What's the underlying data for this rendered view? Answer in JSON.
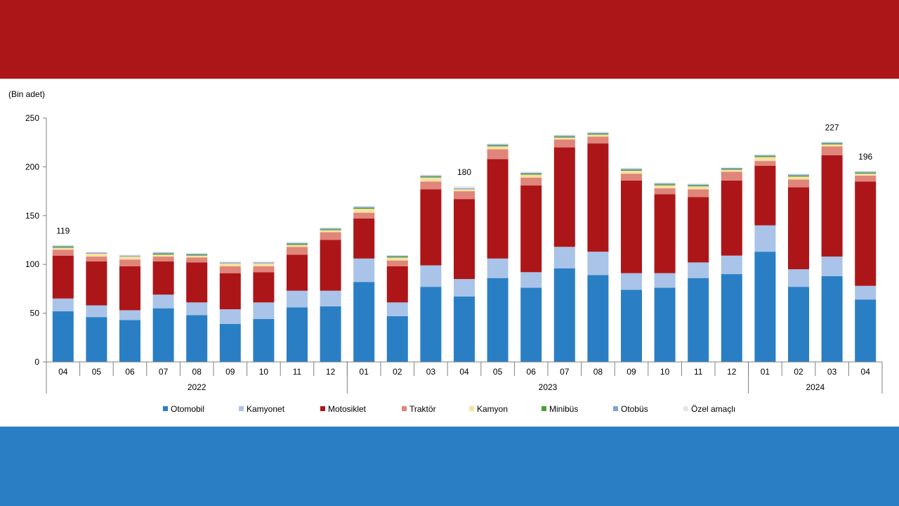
{
  "chart_data": {
    "type": "bar",
    "stacked": true,
    "unit_label": "(Bin adet)",
    "ylim": [
      0,
      250
    ],
    "yticks": [
      "0",
      "50",
      "100",
      "150",
      "200",
      "250"
    ],
    "categories": [
      "04",
      "05",
      "06",
      "07",
      "08",
      "09",
      "10",
      "11",
      "12",
      "01",
      "02",
      "03",
      "04",
      "05",
      "06",
      "07",
      "08",
      "09",
      "10",
      "11",
      "12",
      "01",
      "02",
      "03",
      "04"
    ],
    "year_groups": [
      {
        "label": "2022",
        "count": 9
      },
      {
        "label": "2023",
        "count": 12
      },
      {
        "label": "2024",
        "count": 4
      }
    ],
    "series": [
      {
        "name": "Otomobil",
        "color": "#2a7fc4",
        "values": [
          52,
          46,
          43,
          55,
          48,
          39,
          44,
          56,
          57,
          82,
          47,
          77,
          67,
          86,
          76,
          96,
          89,
          74,
          76,
          86,
          90,
          113,
          77,
          88,
          64
        ]
      },
      {
        "name": "Kamyonet",
        "color": "#a9c4e8",
        "values": [
          13,
          12,
          10,
          14,
          13,
          15,
          17,
          17,
          16,
          24,
          14,
          22,
          18,
          20,
          16,
          22,
          24,
          17,
          15,
          16,
          19,
          27,
          18,
          20,
          14
        ]
      },
      {
        "name": "Motosiklet",
        "color": "#ad1618",
        "values": [
          44,
          45,
          45,
          34,
          41,
          37,
          31,
          37,
          52,
          41,
          37,
          78,
          82,
          102,
          89,
          102,
          111,
          95,
          81,
          67,
          77,
          61,
          84,
          104,
          107
        ]
      },
      {
        "name": "Traktör",
        "color": "#e0857a",
        "values": [
          6,
          5,
          7,
          5,
          5,
          7,
          6,
          8,
          8,
          6,
          6,
          8,
          8,
          10,
          8,
          8,
          7,
          7,
          6,
          8,
          9,
          5,
          8,
          9,
          6
        ]
      },
      {
        "name": "Kamyon",
        "color": "#fbe0a0",
        "values": [
          2,
          3,
          3,
          2,
          2,
          3,
          3,
          2,
          2,
          4,
          3,
          4,
          2,
          3,
          3,
          2,
          2,
          3,
          3,
          3,
          2,
          4,
          3,
          2,
          2
        ]
      },
      {
        "name": "Minibüs",
        "color": "#4a9c3c",
        "values": [
          1,
          0,
          0,
          1,
          1,
          0,
          0,
          1,
          1,
          1,
          1,
          1,
          0,
          1,
          1,
          1,
          1,
          1,
          1,
          1,
          1,
          1,
          1,
          1,
          1
        ]
      },
      {
        "name": "Otobüs",
        "color": "#7ea3d6",
        "values": [
          1,
          1,
          1,
          1,
          1,
          1,
          1,
          1,
          1,
          1,
          1,
          1,
          1,
          1,
          1,
          1,
          1,
          1,
          1,
          1,
          1,
          1,
          1,
          1,
          1
        ]
      },
      {
        "name": "Özel amaçlı",
        "color": "#e6e6e0",
        "values": [
          1,
          1,
          1,
          1,
          0,
          1,
          1,
          1,
          1,
          1,
          0,
          1,
          2,
          1,
          1,
          1,
          1,
          1,
          1,
          1,
          0,
          1,
          1,
          1,
          1
        ]
      }
    ],
    "annotations": [
      {
        "index": 0,
        "label": "119"
      },
      {
        "index": 12,
        "label": "180"
      },
      {
        "index": 23,
        "label": "227"
      },
      {
        "index": 24,
        "label": "196"
      }
    ],
    "legend_position": "bottom"
  }
}
